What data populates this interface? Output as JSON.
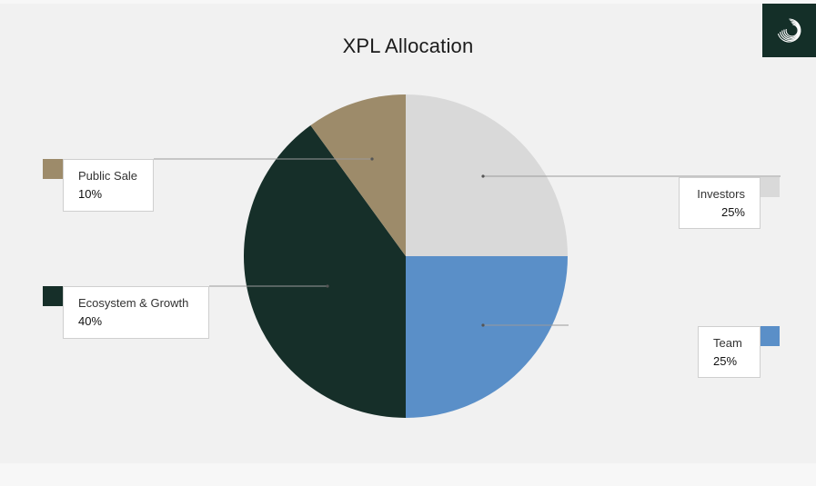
{
  "chart_data": {
    "type": "pie",
    "title": "XPL Allocation",
    "start_angle_deg": 0,
    "direction": "clockwise",
    "slices": [
      {
        "name": "Investors",
        "value": 25,
        "label": "25%",
        "color": "#d9d9d9"
      },
      {
        "name": "Team",
        "value": 25,
        "label": "25%",
        "color": "#5a8fc8"
      },
      {
        "name": "Ecosystem & Growth",
        "value": 40,
        "label": "40%",
        "color": "#162f29"
      },
      {
        "name": "Public Sale",
        "value": 10,
        "label": "10%",
        "color": "#9d8b6a"
      }
    ],
    "legend_placement": "callouts-both-sides"
  },
  "logo": {
    "icon": "swirl-logo-icon",
    "background": "#142f28",
    "foreground": "#ffffff"
  },
  "colors": {
    "background": "#f1f1f1",
    "leader_line": "#9a9a9a"
  }
}
